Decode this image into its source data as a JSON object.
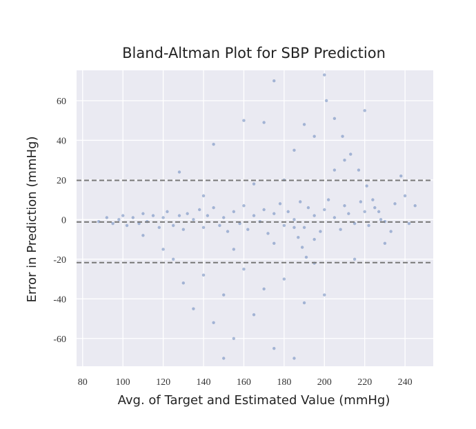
{
  "chart_data": {
    "type": "scatter",
    "title": "Bland-Altman Plot for SBP Prediction",
    "x_label": "Avg. of Target and Estimated Value (mmHg)",
    "y_label": "Error in Prediction (mmHg)",
    "color": "#4c72b0",
    "x": [
      88,
      92,
      95,
      98,
      100,
      102,
      105,
      108,
      110,
      112,
      115,
      118,
      120,
      122,
      125,
      128,
      130,
      132,
      135,
      138,
      140,
      142,
      145,
      148,
      150,
      152,
      155,
      158,
      160,
      162,
      165,
      168,
      170,
      172,
      175,
      178,
      180,
      182,
      185,
      188,
      190,
      192,
      195,
      198,
      200,
      202,
      205,
      208,
      210,
      212,
      215,
      218,
      220,
      222,
      225,
      228,
      235,
      240,
      245,
      242,
      125,
      130,
      135,
      140,
      145,
      150,
      155,
      160,
      165,
      170,
      175,
      180,
      185,
      190,
      195,
      200,
      145,
      160,
      170,
      185,
      190,
      195,
      210,
      220,
      175,
      150,
      120,
      110,
      230,
      215,
      205,
      180,
      165,
      140,
      128,
      200,
      238,
      155,
      175,
      195,
      201,
      205,
      209,
      213,
      217,
      221,
      224,
      227,
      230,
      233,
      185,
      187,
      189,
      191
    ],
    "y": [
      -1,
      1,
      -2,
      0,
      2,
      -3,
      1,
      -2,
      3,
      -1,
      2,
      -4,
      1,
      4,
      -3,
      2,
      -5,
      3,
      0,
      5,
      -4,
      2,
      6,
      -3,
      1,
      -6,
      4,
      -2,
      7,
      -5,
      2,
      -1,
      5,
      -7,
      3,
      8,
      -3,
      4,
      0,
      9,
      -4,
      6,
      2,
      -6,
      5,
      10,
      1,
      -5,
      7,
      3,
      -2,
      9,
      4,
      -3,
      6,
      0,
      8,
      12,
      7,
      -2,
      -20,
      -32,
      -45,
      -28,
      -52,
      -38,
      -60,
      -25,
      -48,
      -35,
      -65,
      -30,
      -70,
      -42,
      -22,
      -38,
      38,
      50,
      49,
      35,
      48,
      42,
      30,
      55,
      70,
      -70,
      -15,
      -8,
      -12,
      -20,
      25,
      20,
      18,
      12,
      24,
      73,
      22,
      -15,
      -12,
      -10,
      60,
      51,
      42,
      33,
      25,
      17,
      10,
      4,
      -1,
      -6,
      -4,
      -9,
      -14,
      -19
    ],
    "hlines": [
      19.8,
      -1.2,
      -21.7
    ],
    "xlim": [
      77,
      254
    ],
    "ylim": [
      -74,
      75.3
    ],
    "xticks": [
      80,
      100,
      120,
      140,
      160,
      180,
      200,
      220,
      240
    ],
    "yticks": [
      -60,
      -40,
      -20,
      0,
      20,
      40,
      60
    ],
    "grid": true
  }
}
